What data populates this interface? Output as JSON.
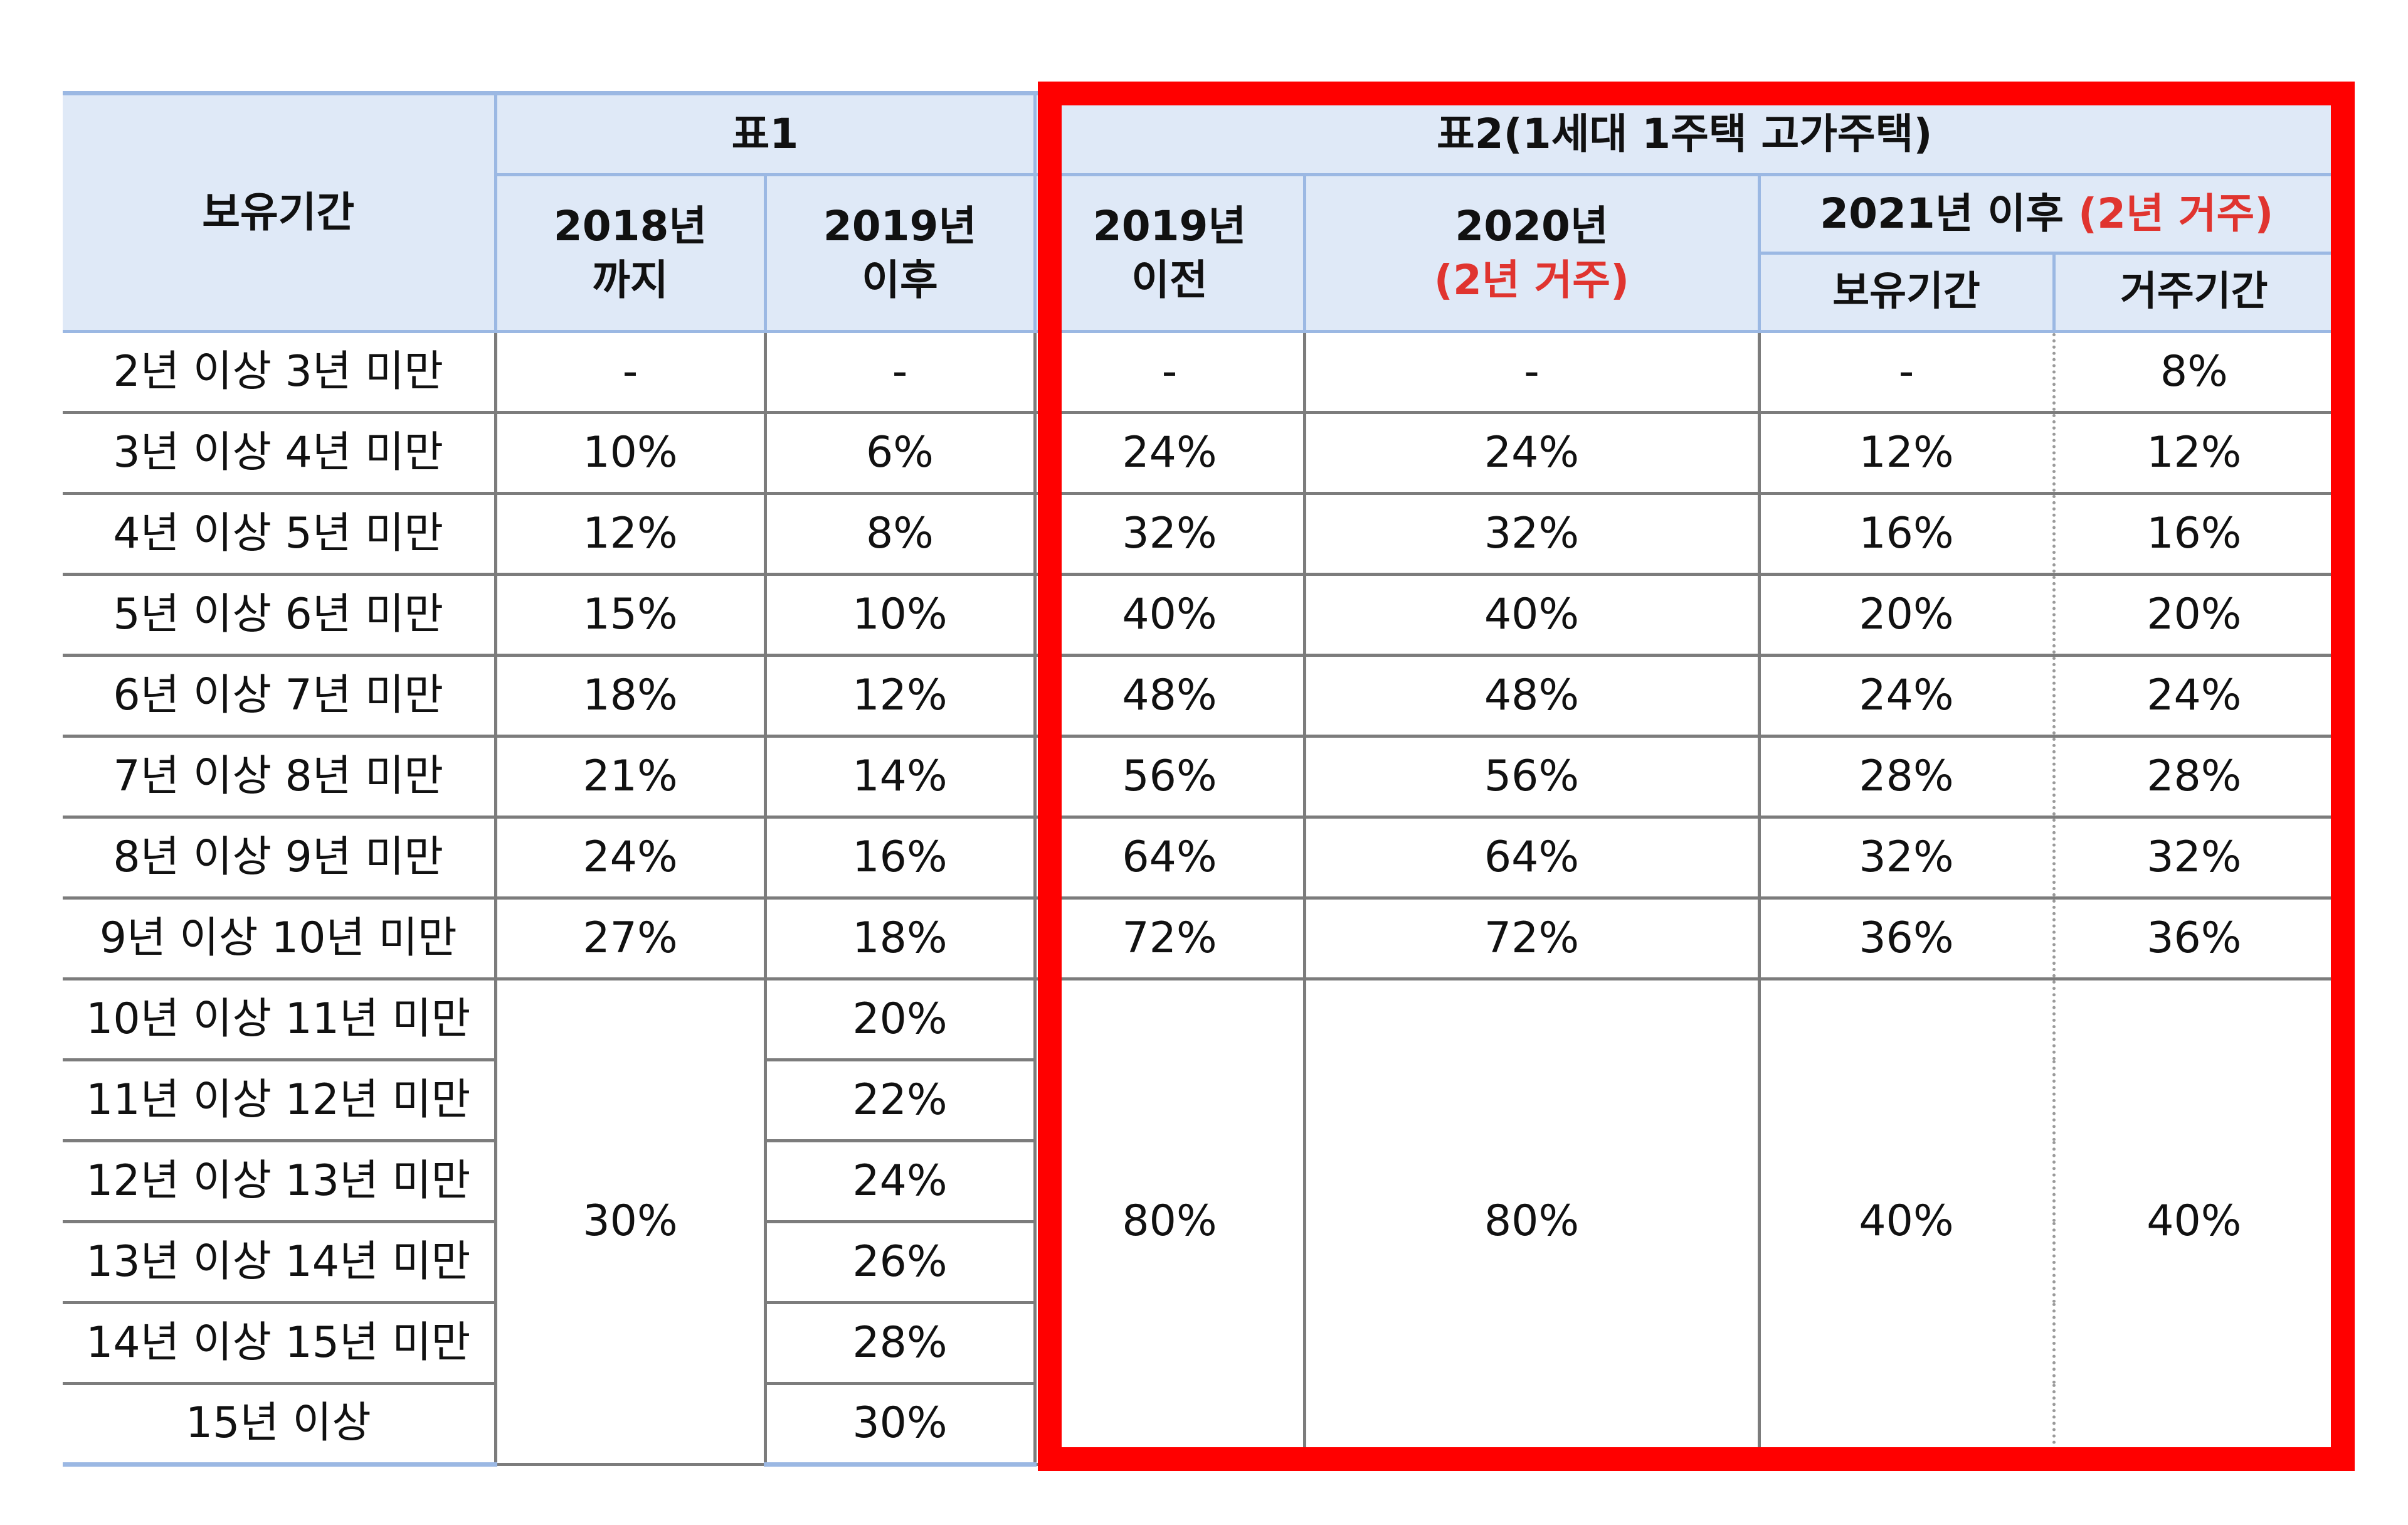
{
  "headers": {
    "period": "보유기간",
    "table1": "표1",
    "table1_col1_line1": "2018년",
    "table1_col1_line2": "까지",
    "table1_col2_line1": "2019년",
    "table1_col2_line2": "이후",
    "table2": "표2(1세대 1주택 고가주택)",
    "table2_col1_line1": "2019년",
    "table2_col1_line2": "이전",
    "table2_col2_line1": "2020년",
    "table2_col2_line2": "(2년 거주)",
    "table2_col3_main": "2021년 이후",
    "table2_col3_red": "(2년 거주)",
    "table2_col3_sub1": "보유기간",
    "table2_col3_sub2": "거주기간"
  },
  "rows": [
    {
      "period": "2년  이상 3년  미만",
      "t1_2018": "-",
      "t1_2019": "-",
      "t2_2019": "-",
      "t2_2020": "-",
      "t2_2021_hold": "-",
      "t2_2021_live": "8%"
    },
    {
      "period": "3년  이상 4년  미만",
      "t1_2018": "10%",
      "t1_2019": "6%",
      "t2_2019": "24%",
      "t2_2020": "24%",
      "t2_2021_hold": "12%",
      "t2_2021_live": "12%"
    },
    {
      "period": "4년  이상 5년  미만",
      "t1_2018": "12%",
      "t1_2019": "8%",
      "t2_2019": "32%",
      "t2_2020": "32%",
      "t2_2021_hold": "16%",
      "t2_2021_live": "16%"
    },
    {
      "period": "5년  이상 6년  미만",
      "t1_2018": "15%",
      "t1_2019": "10%",
      "t2_2019": "40%",
      "t2_2020": "40%",
      "t2_2021_hold": "20%",
      "t2_2021_live": "20%"
    },
    {
      "period": "6년  이상 7년  미만",
      "t1_2018": "18%",
      "t1_2019": "12%",
      "t2_2019": "48%",
      "t2_2020": "48%",
      "t2_2021_hold": "24%",
      "t2_2021_live": "24%"
    },
    {
      "period": "7년  이상 8년  미만",
      "t1_2018": "21%",
      "t1_2019": "14%",
      "t2_2019": "56%",
      "t2_2020": "56%",
      "t2_2021_hold": "28%",
      "t2_2021_live": "28%"
    },
    {
      "period": "8년  이상 9년  미만",
      "t1_2018": "24%",
      "t1_2019": "16%",
      "t2_2019": "64%",
      "t2_2020": "64%",
      "t2_2021_hold": "32%",
      "t2_2021_live": "32%"
    },
    {
      "period": "9년  이상 10년 미만",
      "t1_2018": "27%",
      "t1_2019": "18%",
      "t2_2019": "72%",
      "t2_2020": "72%",
      "t2_2021_hold": "36%",
      "t2_2021_live": "36%"
    },
    {
      "period": "10년 이상 11년 미만",
      "t1_2019": "20%"
    },
    {
      "period": "11년 이상 12년 미만",
      "t1_2019": "22%"
    },
    {
      "period": "12년 이상 13년 미만",
      "t1_2019": "24%"
    },
    {
      "period": "13년 이상 14년 미만",
      "t1_2019": "26%"
    },
    {
      "period": "14년 이상 15년 미만",
      "t1_2019": "28%"
    },
    {
      "period": "15년 이상",
      "t1_2019": "30%"
    }
  ],
  "merged": {
    "t1_2018": "30%",
    "t2_2019": "80%",
    "t2_2020": "80%",
    "t2_2021_hold": "40%",
    "t2_2021_live": "40%"
  },
  "colors": {
    "header_bg": "#dfe9f7",
    "highlight_frame": "#ff0000",
    "red_text": "#e0342f"
  }
}
